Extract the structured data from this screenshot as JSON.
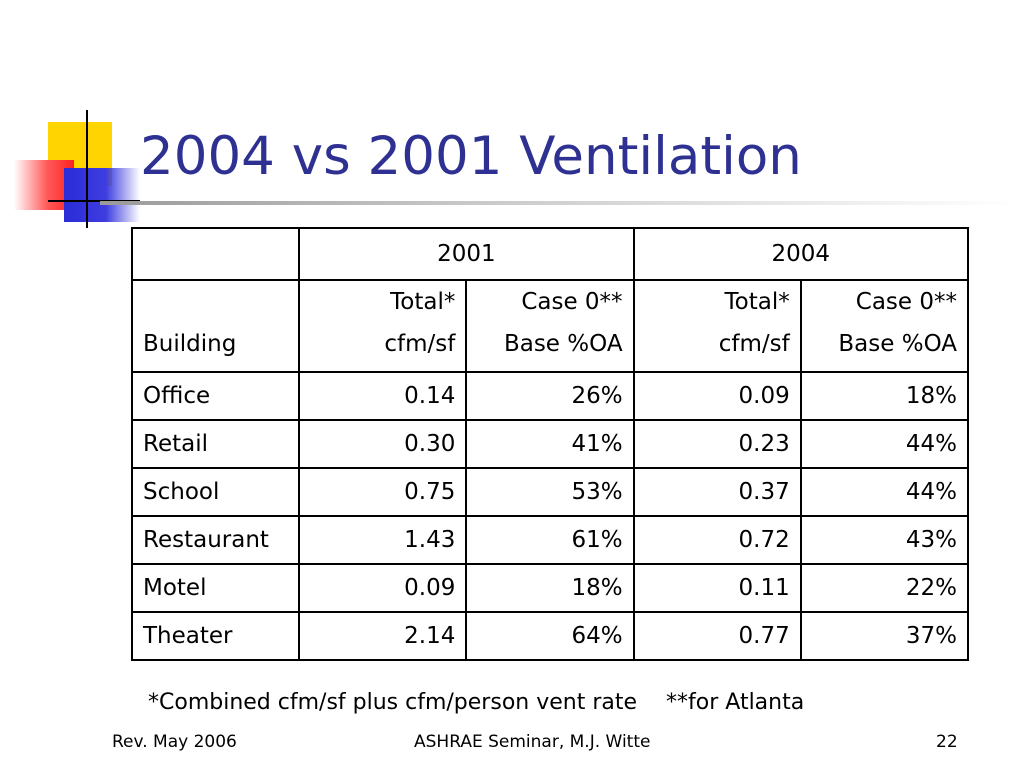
{
  "title": "2004 vs 2001 Ventilation",
  "table": {
    "years": [
      "2001",
      "2004"
    ],
    "subheaders": {
      "building": "Building",
      "total_line1": "Total*",
      "total_line2": "cfm/sf",
      "case_line1": "Case 0**",
      "case_line2": "Base %OA"
    },
    "rows": [
      {
        "building": "Office",
        "total_2001": "0.14",
        "oa_2001": "26%",
        "total_2004": "0.09",
        "oa_2004": "18%"
      },
      {
        "building": "Retail",
        "total_2001": "0.30",
        "oa_2001": "41%",
        "total_2004": "0.23",
        "oa_2004": "44%"
      },
      {
        "building": "School",
        "total_2001": "0.75",
        "oa_2001": "53%",
        "total_2004": "0.37",
        "oa_2004": "44%"
      },
      {
        "building": "Restaurant",
        "total_2001": "1.43",
        "oa_2001": "61%",
        "total_2004": "0.72",
        "oa_2004": "43%"
      },
      {
        "building": "Motel",
        "total_2001": "0.09",
        "oa_2001": "18%",
        "total_2004": "0.11",
        "oa_2004": "22%"
      },
      {
        "building": "Theater",
        "total_2001": "2.14",
        "oa_2001": "64%",
        "total_2004": "0.77",
        "oa_2004": "37%"
      }
    ]
  },
  "footnotes": {
    "combined": "*Combined cfm/sf plus cfm/person vent rate",
    "atlanta": "**for Atlanta"
  },
  "footer": {
    "revision": "Rev. May 2006",
    "source": "ASHRAE Seminar, M.J. Witte",
    "page": "22"
  },
  "colors": {
    "title": "#2e3192",
    "ornament_yellow": "#ffd400",
    "ornament_red": "#ff2020",
    "ornament_blue": "#2b2bd8"
  }
}
